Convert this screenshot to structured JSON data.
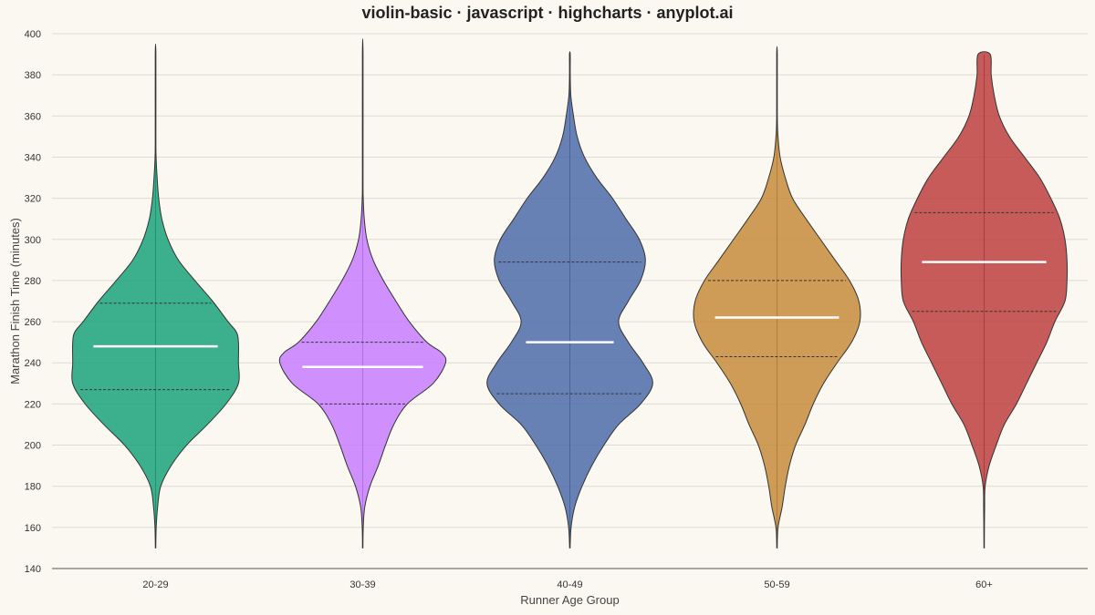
{
  "chart_data": {
    "type": "violin",
    "title": "violin-basic · javascript · highcharts · anyplot.ai",
    "xlabel": "Runner Age Group",
    "ylabel": "Marathon Finish Time (minutes)",
    "ylim": [
      140,
      400
    ],
    "yticks": [
      140,
      160,
      180,
      200,
      220,
      240,
      260,
      280,
      300,
      320,
      340,
      360,
      380,
      400
    ],
    "grid": true,
    "categories": [
      "20-29",
      "30-39",
      "40-49",
      "50-59",
      "60+"
    ],
    "series": [
      {
        "category": "20-29",
        "color": "#1AA37A",
        "median": 248,
        "q1": 227,
        "q3": 269,
        "min": 150,
        "max": 390,
        "density": [
          [
            150,
            0.2
          ],
          [
            160,
            0.6
          ],
          [
            170,
            2
          ],
          [
            180,
            5
          ],
          [
            190,
            15
          ],
          [
            200,
            30
          ],
          [
            210,
            50
          ],
          [
            220,
            68
          ],
          [
            230,
            80
          ],
          [
            240,
            80
          ],
          [
            250,
            80
          ],
          [
            255,
            78
          ],
          [
            260,
            70
          ],
          [
            270,
            55
          ],
          [
            280,
            38
          ],
          [
            290,
            22
          ],
          [
            300,
            12
          ],
          [
            310,
            6
          ],
          [
            320,
            3
          ],
          [
            330,
            1.5
          ],
          [
            340,
            0.5
          ],
          [
            350,
            0.3
          ],
          [
            390,
            0.3
          ]
        ]
      },
      {
        "category": "30-39",
        "color": "#C77DFF",
        "median": 238,
        "q1": 220,
        "q3": 250,
        "min": 150,
        "max": 390,
        "density": [
          [
            150,
            0.2
          ],
          [
            160,
            0.5
          ],
          [
            170,
            2
          ],
          [
            180,
            7
          ],
          [
            190,
            15
          ],
          [
            200,
            22
          ],
          [
            210,
            30
          ],
          [
            220,
            43
          ],
          [
            230,
            68
          ],
          [
            240,
            80
          ],
          [
            245,
            76
          ],
          [
            250,
            62
          ],
          [
            260,
            45
          ],
          [
            270,
            32
          ],
          [
            280,
            20
          ],
          [
            290,
            10
          ],
          [
            300,
            4
          ],
          [
            310,
            1.5
          ],
          [
            320,
            0.5
          ],
          [
            330,
            0.3
          ],
          [
            390,
            0.3
          ]
        ]
      },
      {
        "category": "40-49",
        "color": "#4C6CAA",
        "median": 250,
        "q1": 225,
        "q3": 289,
        "min": 150,
        "max": 390,
        "density": [
          [
            150,
            0.2
          ],
          [
            160,
            1
          ],
          [
            170,
            4
          ],
          [
            180,
            10
          ],
          [
            190,
            18
          ],
          [
            200,
            28
          ],
          [
            210,
            40
          ],
          [
            220,
            58
          ],
          [
            230,
            68
          ],
          [
            240,
            60
          ],
          [
            250,
            48
          ],
          [
            260,
            40
          ],
          [
            270,
            48
          ],
          [
            280,
            58
          ],
          [
            290,
            62
          ],
          [
            300,
            57
          ],
          [
            310,
            46
          ],
          [
            320,
            35
          ],
          [
            330,
            22
          ],
          [
            340,
            12
          ],
          [
            350,
            6
          ],
          [
            360,
            3
          ],
          [
            370,
            0.8
          ],
          [
            380,
            0.3
          ],
          [
            390,
            0.3
          ]
        ]
      },
      {
        "category": "50-59",
        "color": "#C68C3C",
        "median": 262,
        "q1": 243,
        "q3": 280,
        "min": 150,
        "max": 390,
        "density": [
          [
            150,
            0.2
          ],
          [
            160,
            1
          ],
          [
            170,
            5
          ],
          [
            180,
            8
          ],
          [
            190,
            12
          ],
          [
            200,
            18
          ],
          [
            210,
            27
          ],
          [
            220,
            35
          ],
          [
            230,
            45
          ],
          [
            240,
            58
          ],
          [
            250,
            72
          ],
          [
            260,
            80
          ],
          [
            270,
            79
          ],
          [
            280,
            70
          ],
          [
            290,
            56
          ],
          [
            300,
            42
          ],
          [
            310,
            28
          ],
          [
            320,
            15
          ],
          [
            330,
            8
          ],
          [
            340,
            3
          ],
          [
            350,
            1
          ],
          [
            360,
            0.3
          ],
          [
            390,
            0.3
          ]
        ]
      },
      {
        "category": "60+",
        "color": "#BC3F3F",
        "median": 289,
        "q1": 265,
        "q3": 313,
        "min": 150,
        "max": 390,
        "density": [
          [
            150,
            0.2
          ],
          [
            160,
            0.3
          ],
          [
            170,
            0.5
          ],
          [
            180,
            1
          ],
          [
            190,
            5
          ],
          [
            200,
            12
          ],
          [
            210,
            20
          ],
          [
            220,
            32
          ],
          [
            230,
            42
          ],
          [
            240,
            52
          ],
          [
            250,
            62
          ],
          [
            260,
            70
          ],
          [
            270,
            80
          ],
          [
            280,
            82
          ],
          [
            290,
            82
          ],
          [
            300,
            80
          ],
          [
            310,
            75
          ],
          [
            320,
            66
          ],
          [
            330,
            55
          ],
          [
            340,
            40
          ],
          [
            350,
            25
          ],
          [
            360,
            15
          ],
          [
            370,
            10
          ],
          [
            380,
            7
          ],
          [
            390,
            6
          ]
        ]
      }
    ]
  }
}
